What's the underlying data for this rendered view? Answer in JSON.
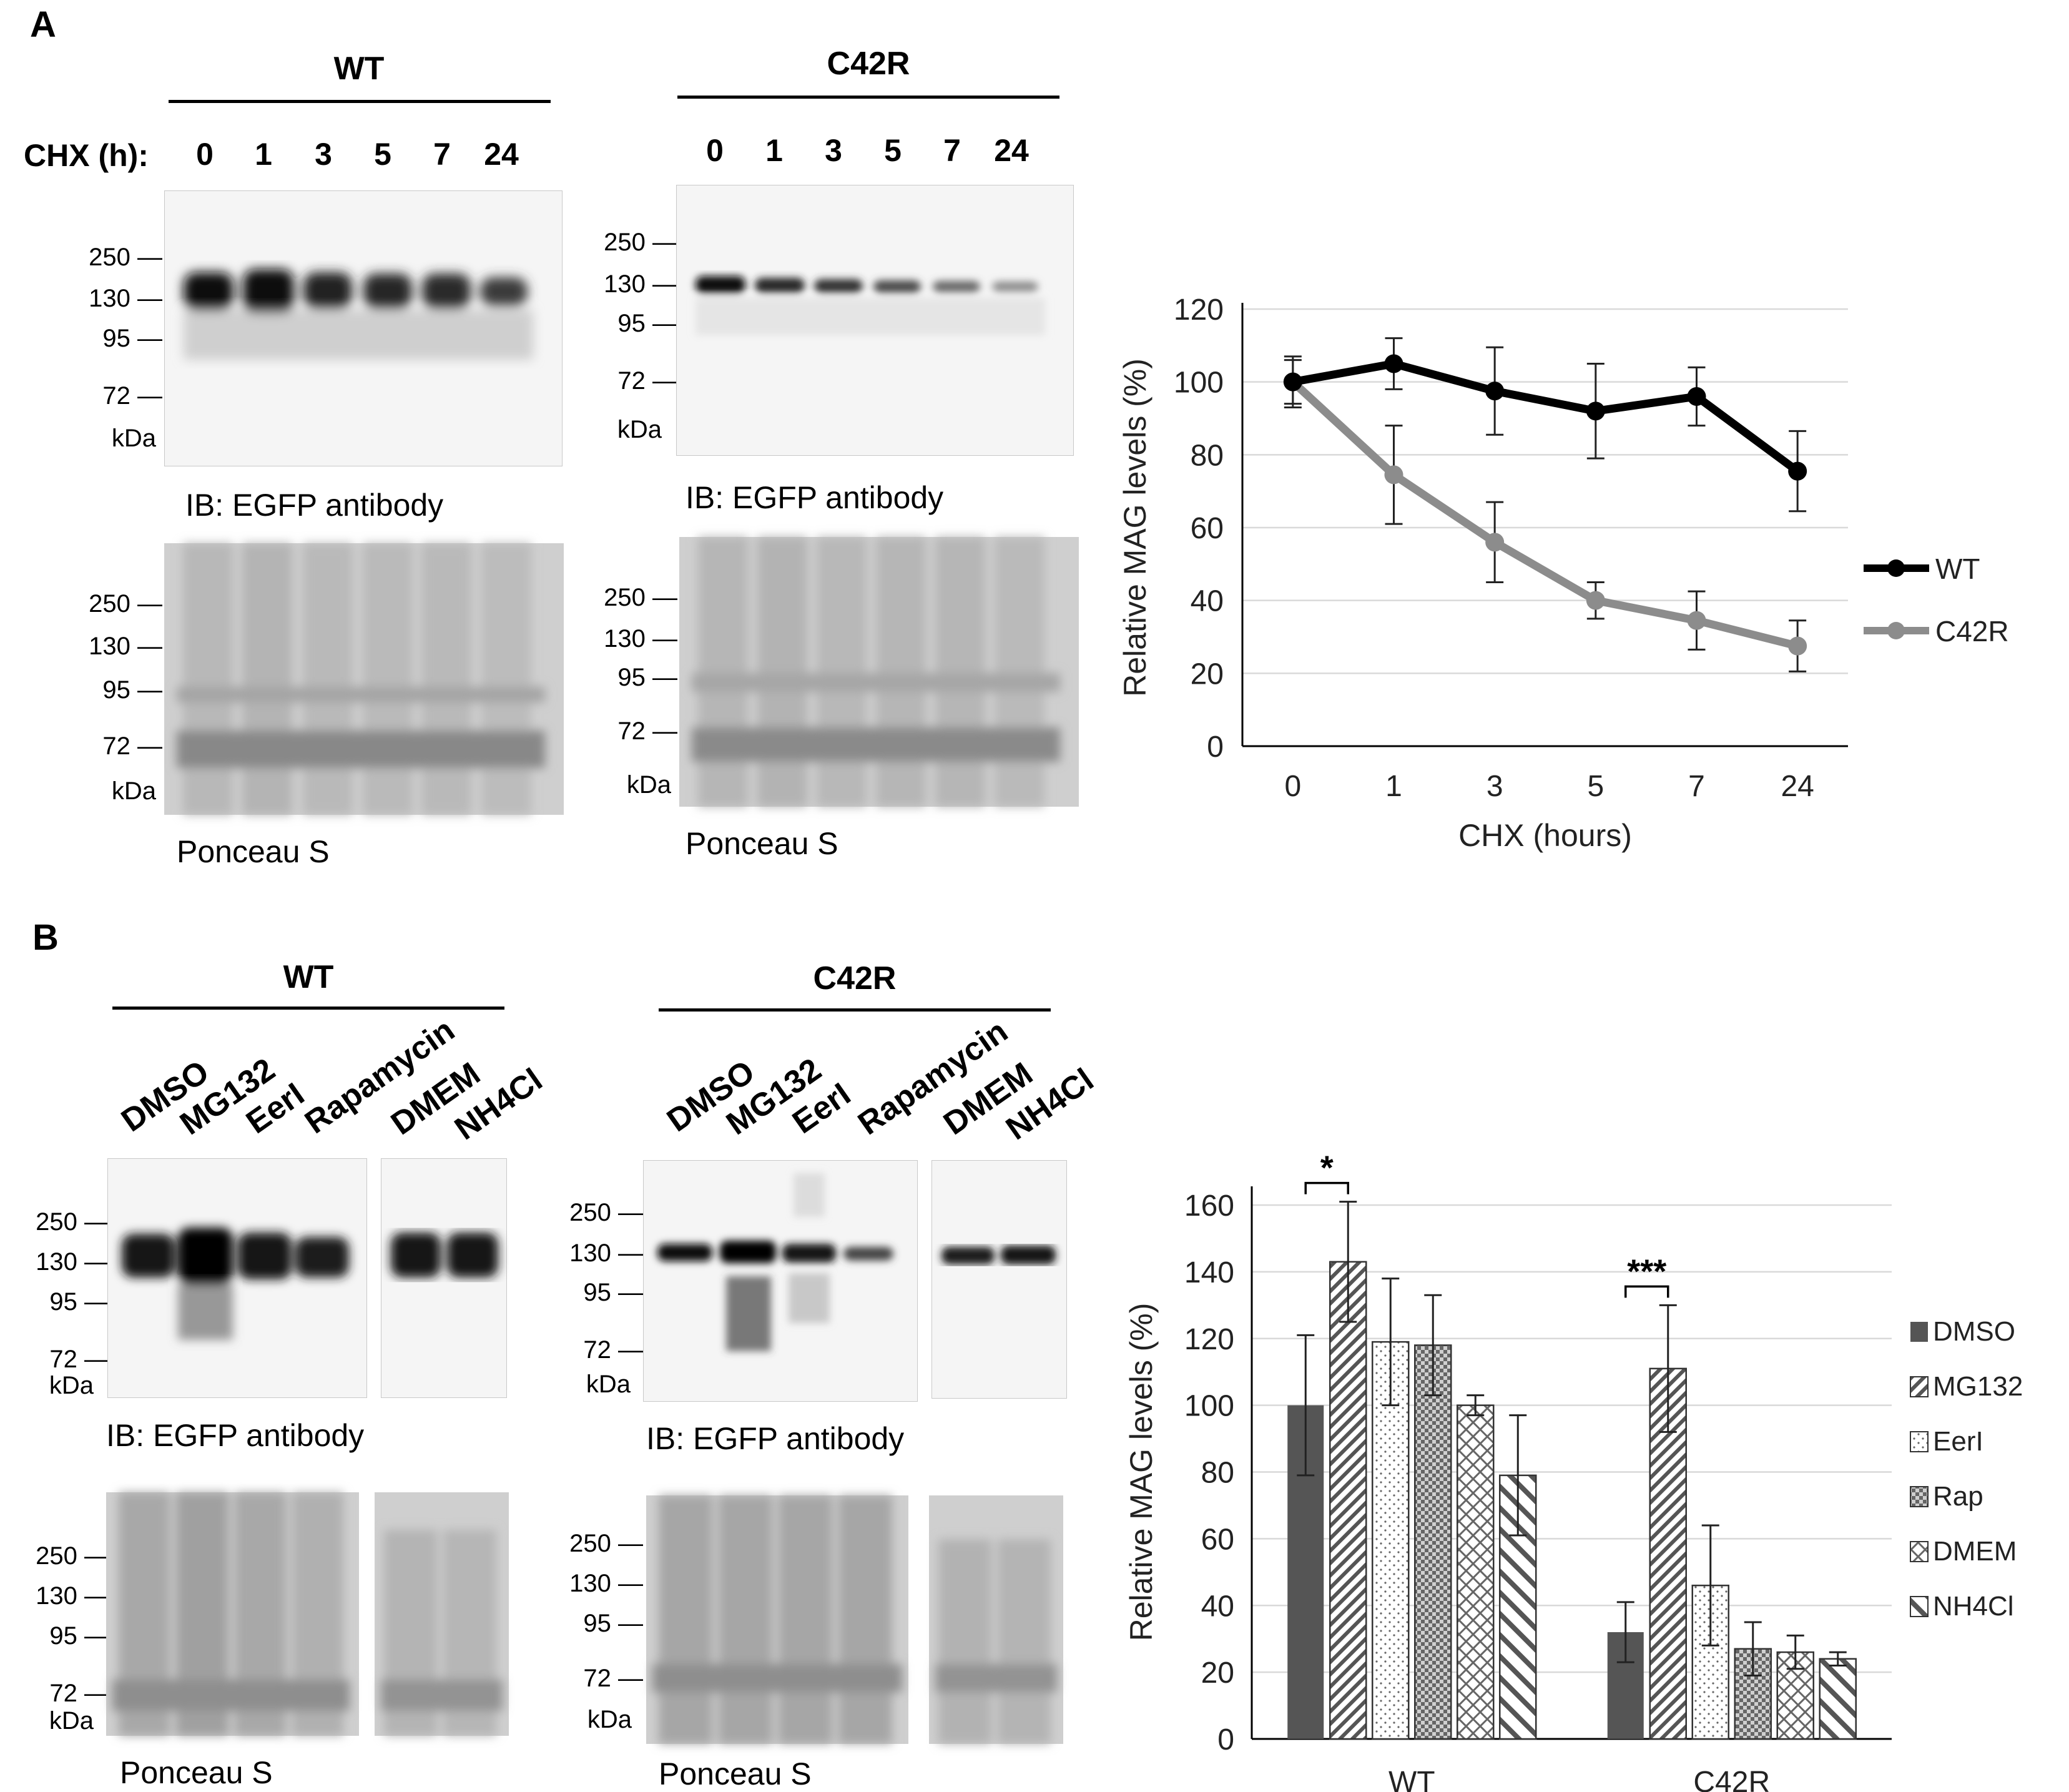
{
  "panelA": {
    "letter": "A",
    "wt": {
      "header": "WT",
      "chx_label": "CHX (h):",
      "lanes": [
        "0",
        "1",
        "3",
        "5",
        "7",
        "24"
      ],
      "mw_ib": [
        "250",
        "130",
        "95",
        "72",
        "kDa"
      ],
      "ib_caption": "IB: EGFP antibody",
      "mw_ponceau": [
        "250",
        "130",
        "95",
        "72",
        "kDa"
      ],
      "ponceau_caption": "Ponceau S"
    },
    "c42r": {
      "header": "C42R",
      "lanes": [
        "0",
        "1",
        "3",
        "5",
        "7",
        "24"
      ],
      "mw_ib": [
        "250",
        "130",
        "95",
        "72",
        "kDa"
      ],
      "ib_caption": "IB: EGFP antibody",
      "mw_ponceau": [
        "250",
        "130",
        "95",
        "72",
        "kDa"
      ],
      "ponceau_caption": "Ponceau S"
    }
  },
  "panelB": {
    "letter": "B",
    "wt": {
      "header": "WT",
      "lanes": [
        "DMSO",
        "MG132",
        "EerI",
        "Rapamycin",
        "DMEM",
        "NH4Cl"
      ],
      "mw_ib": [
        "250",
        "130",
        "95",
        "72",
        "kDa"
      ],
      "ib_caption": "IB: EGFP antibody",
      "mw_ponceau": [
        "250",
        "130",
        "95",
        "72",
        "kDa"
      ],
      "ponceau_caption": "Ponceau S"
    },
    "c42r": {
      "header": "C42R",
      "lanes": [
        "DMSO",
        "MG132",
        "EerI",
        "Rapamycin",
        "DMEM",
        "NH4Cl"
      ],
      "mw_ib": [
        "250",
        "130",
        "95",
        "72",
        "kDa"
      ],
      "ib_caption": "IB: EGFP antibody",
      "mw_ponceau": [
        "250",
        "130",
        "95",
        "72",
        "kDa"
      ],
      "ponceau_caption": "Ponceau S"
    }
  },
  "chart_data": [
    {
      "type": "line",
      "title": "",
      "xlabel": "CHX (hours)",
      "ylabel": "Relative MAG levels (%)",
      "categories": [
        "0",
        "1",
        "3",
        "5",
        "7",
        "24"
      ],
      "ylim": [
        0,
        120
      ],
      "yticks": [
        0,
        20,
        40,
        60,
        80,
        100,
        120
      ],
      "grid": true,
      "legend": "right",
      "series": [
        {
          "name": "WT",
          "color": "#000000",
          "values": [
            100,
            105,
            97.5,
            92,
            96,
            75.5
          ],
          "errors": [
            6,
            7,
            12,
            13,
            8,
            11
          ]
        },
        {
          "name": "C42R",
          "color": "#8c8c8c",
          "values": [
            100,
            74.5,
            56,
            40,
            34.5,
            27.5
          ],
          "errors": [
            7,
            13.5,
            11,
            5,
            8,
            7
          ]
        }
      ]
    },
    {
      "type": "bar",
      "title": "",
      "xlabel": "",
      "ylabel": "Relative MAG levels (%)",
      "categories": [
        "WT",
        "C42R"
      ],
      "ylim": [
        0,
        160
      ],
      "yticks": [
        0,
        20,
        40,
        60,
        80,
        100,
        120,
        140,
        160
      ],
      "grid": true,
      "legend": "right",
      "series": [
        {
          "name": "DMSO",
          "pattern": "solid",
          "values": [
            100,
            32
          ],
          "errors": [
            21,
            9
          ]
        },
        {
          "name": "MG132",
          "pattern": "diagonal",
          "values": [
            143,
            111
          ],
          "errors": [
            18,
            19
          ]
        },
        {
          "name": "EerI",
          "pattern": "dots",
          "values": [
            119,
            46
          ],
          "errors": [
            19,
            18
          ]
        },
        {
          "name": "Rap",
          "pattern": "checker",
          "values": [
            118,
            27
          ],
          "errors": [
            15,
            8
          ]
        },
        {
          "name": "DMEM",
          "pattern": "crosshatch",
          "values": [
            100,
            26
          ],
          "errors": [
            3,
            5
          ]
        },
        {
          "name": "NH4Cl",
          "pattern": "widediag",
          "values": [
            79,
            24
          ],
          "errors": [
            18,
            2
          ]
        }
      ],
      "annotations": [
        {
          "group": "WT",
          "between": [
            "DMSO",
            "MG132"
          ],
          "text": "*"
        },
        {
          "group": "C42R",
          "between": [
            "DMSO",
            "MG132"
          ],
          "text": "***"
        }
      ]
    }
  ]
}
